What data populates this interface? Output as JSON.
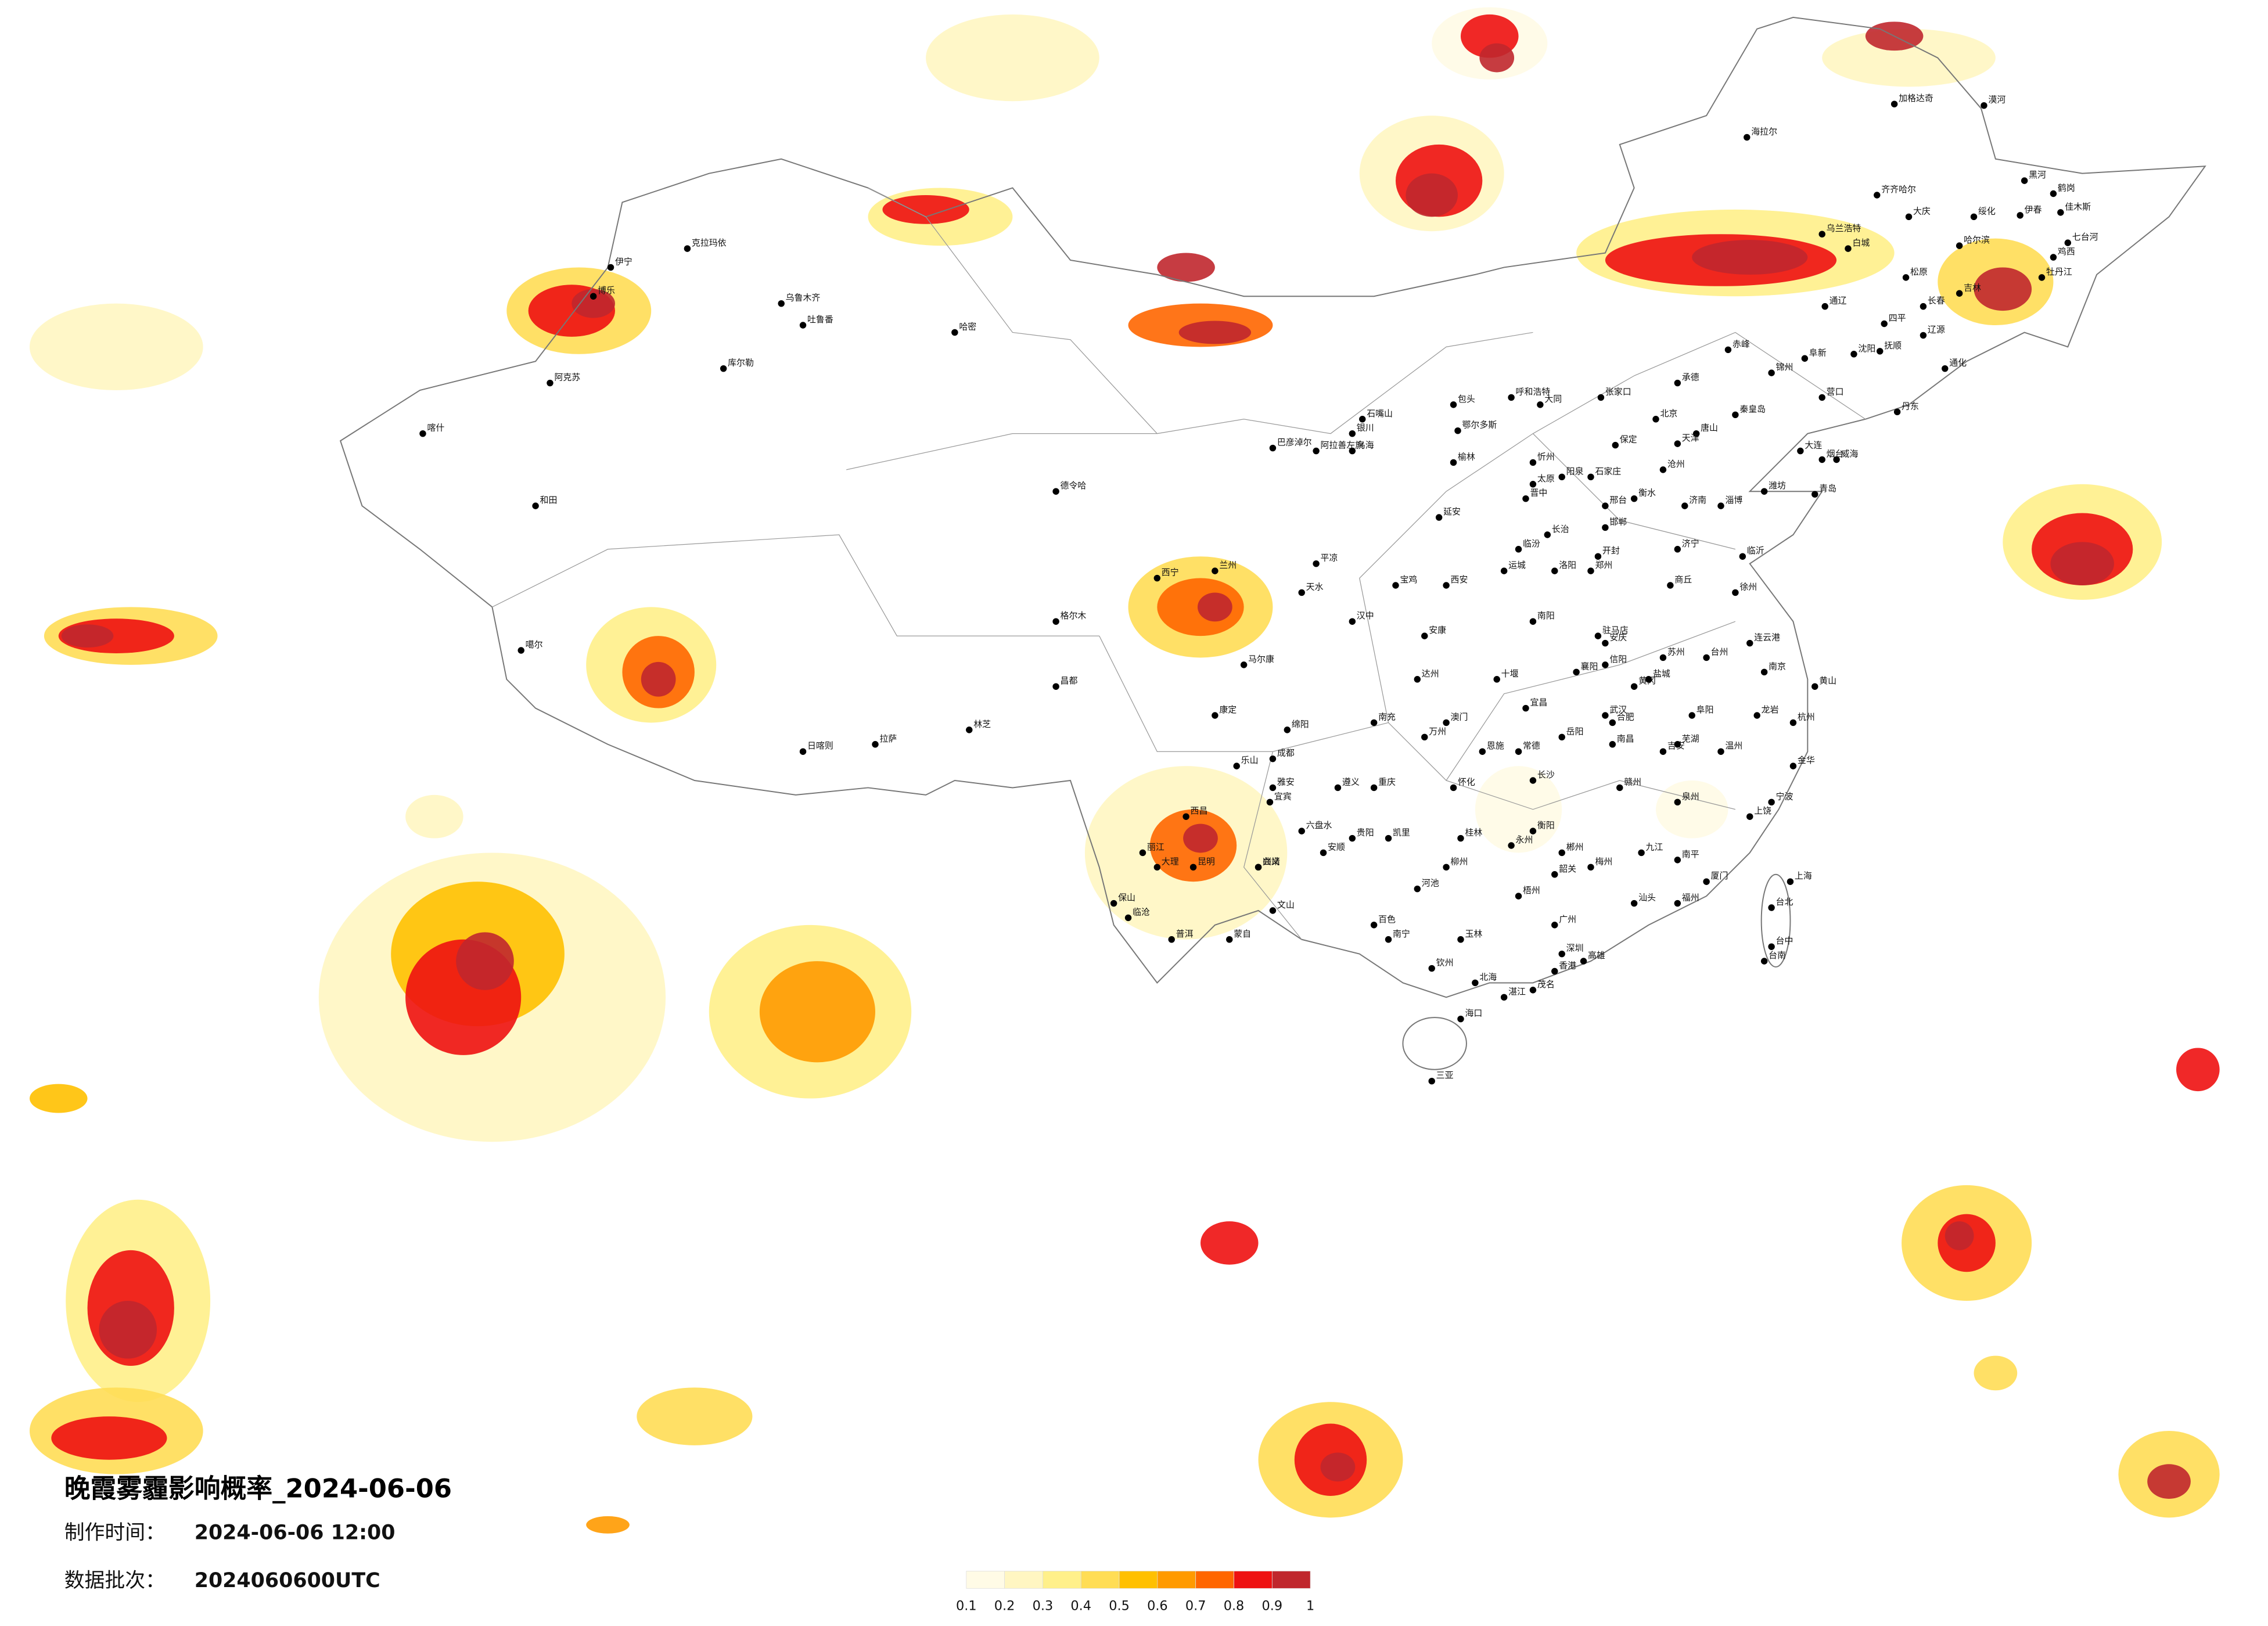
{
  "map": {
    "title": "晚霞雾霾影响概率_2024-06-06",
    "production_time": {
      "label": "制作时间：",
      "value": "2024-06-06 12:00"
    },
    "data_batch": {
      "label": "数据批次：",
      "value": "2024060600UTC"
    },
    "colorbar": {
      "colors": [
        "#fffbe6",
        "#fff6c2",
        "#fff08a",
        "#ffdd55",
        "#ffc000",
        "#ff9a00",
        "#ff6600",
        "#ee1111",
        "#c0272d"
      ],
      "ticks": [
        0.1,
        0.2,
        0.3,
        0.4,
        0.5,
        0.6,
        0.7,
        0.8,
        0.9,
        1
      ]
    },
    "cities": [
      "漠河",
      "加格达奇",
      "海拉尔",
      "黑河",
      "伊春",
      "鹤岗",
      "佳木斯",
      "齐齐哈尔",
      "大庆",
      "绥化",
      "哈尔滨",
      "七台河",
      "鸡西",
      "牡丹江",
      "乌兰浩特",
      "白城",
      "松原",
      "长春",
      "吉林",
      "通辽",
      "四平",
      "辽源",
      "通化",
      "赤峰",
      "承德",
      "沈阳",
      "抚顺",
      "丹东",
      "大连",
      "营口",
      "锦州",
      "阜新",
      "秦皇岛",
      "唐山",
      "张家口",
      "北京",
      "天津",
      "呼和浩特",
      "包头",
      "鄂尔多斯",
      "银川",
      "石嘴山",
      "阿拉善左旗",
      "乌海",
      "巴彦淖尔",
      "石家庄",
      "保定",
      "沧州",
      "衡水",
      "邢台",
      "邯郸",
      "太原",
      "大同",
      "忻州",
      "阳泉",
      "晋中",
      "长治",
      "临汾",
      "运城",
      "济南",
      "青岛",
      "烟台",
      "威海",
      "潍坊",
      "淄博",
      "临沂",
      "济宁",
      "郑州",
      "洛阳",
      "开封",
      "商丘",
      "南阳",
      "信阳",
      "驻马店",
      "西安",
      "宝鸡",
      "延安",
      "榆林",
      "汉中",
      "安康",
      "兰州",
      "天水",
      "平凉",
      "西宁",
      "格尔木",
      "德令哈",
      "乌鲁木齐",
      "吐鲁番",
      "哈密",
      "克拉玛依",
      "博乐",
      "伊宁",
      "库尔勒",
      "阿克苏",
      "喀什",
      "和田",
      "拉萨",
      "日喀则",
      "林芝",
      "昌都",
      "噶尔",
      "成都",
      "绵阳",
      "南充",
      "达州",
      "宜宾",
      "乐山",
      "雅安",
      "康定",
      "马尔康",
      "西昌",
      "重庆",
      "万州",
      "贵阳",
      "遵义",
      "六盘水",
      "安顺",
      "兴义",
      "凯里",
      "昆明",
      "大理",
      "丽江",
      "保山",
      "临沧",
      "普洱",
      "蒙自",
      "文山",
      "曲靖",
      "南宁",
      "柳州",
      "桂林",
      "梧州",
      "玉林",
      "北海",
      "钦州",
      "百色",
      "河池",
      "广州",
      "深圳",
      "汕头",
      "湛江",
      "茂名",
      "韶关",
      "梅州",
      "海口",
      "三亚",
      "长沙",
      "衡阳",
      "岳阳",
      "常德",
      "怀化",
      "永州",
      "郴州",
      "武汉",
      "宜昌",
      "襄阳",
      "十堰",
      "恩施",
      "黄冈",
      "南昌",
      "九江",
      "赣州",
      "吉安",
      "上饶",
      "福州",
      "厦门",
      "泉州",
      "南平",
      "龙岩",
      "杭州",
      "宁波",
      "温州",
      "金华",
      "台州",
      "南京",
      "苏州",
      "徐州",
      "连云港",
      "盐城",
      "合肥",
      "安庆",
      "阜阳",
      "芜湖",
      "黄山",
      "上海",
      "台北",
      "台中",
      "台南",
      "高雄",
      "香港",
      "澳门"
    ]
  }
}
